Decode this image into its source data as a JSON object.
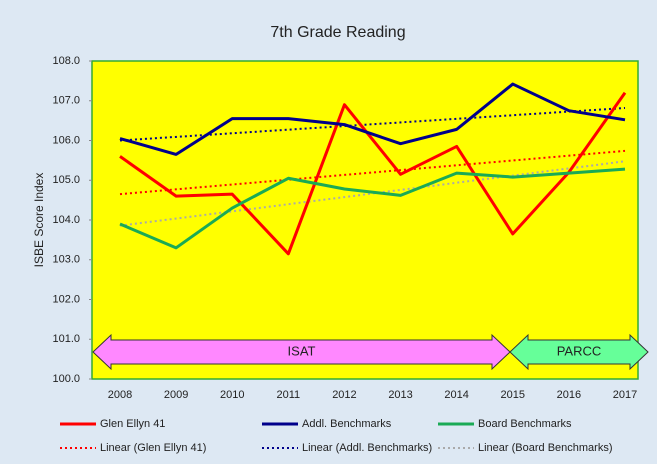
{
  "chart_data": {
    "type": "line",
    "title": "7th Grade Reading",
    "y_label": "ISBE Score Index",
    "categories": [
      "2008",
      "2009",
      "2010",
      "2011",
      "2012",
      "2013",
      "2014",
      "2015",
      "2016",
      "2017"
    ],
    "series": [
      {
        "name": "Glen Ellyn 41",
        "color": "#ff0000",
        "values": [
          105.6,
          104.6,
          104.65,
          103.15,
          106.9,
          105.15,
          105.85,
          103.65,
          105.2,
          107.2
        ]
      },
      {
        "name": "Addl. Benchmarks",
        "color": "#00008b",
        "values": [
          106.05,
          105.65,
          106.55,
          106.55,
          106.4,
          105.92,
          106.28,
          107.42,
          106.75,
          106.52
        ]
      },
      {
        "name": "Board Benchmarks",
        "color": "#1aaa55",
        "values": [
          103.9,
          103.3,
          104.3,
          105.05,
          104.78,
          104.62,
          105.18,
          105.08,
          105.18,
          105.28
        ]
      }
    ],
    "trendlines": [
      {
        "name": "Linear (Glen Ellyn 41)",
        "series": 0,
        "color": "#ff0000"
      },
      {
        "name": "Linear (Addl. Benchmarks)",
        "series": 1,
        "color": "#00008b"
      },
      {
        "name": "Linear (Board Benchmarks)",
        "series": 2,
        "color": "#aaaaaa"
      }
    ],
    "annotations": [
      {
        "text": "ISAT",
        "color": "#ff88ff"
      },
      {
        "text": "PARCC",
        "color": "#66ff99"
      }
    ],
    "ylim": [
      100,
      108
    ],
    "yticks": [
      {
        "value": 100,
        "label": "100.0"
      },
      {
        "value": 101,
        "label": "101.0"
      },
      {
        "value": 102,
        "label": "102.0"
      },
      {
        "value": 103,
        "label": "103.0"
      },
      {
        "value": 104,
        "label": "104.0"
      },
      {
        "value": 105,
        "label": "105.0"
      },
      {
        "value": 106,
        "label": "106.0"
      },
      {
        "value": 107,
        "label": "107.0"
      },
      {
        "value": 108,
        "label": "108.0"
      }
    ],
    "grid": false
  }
}
